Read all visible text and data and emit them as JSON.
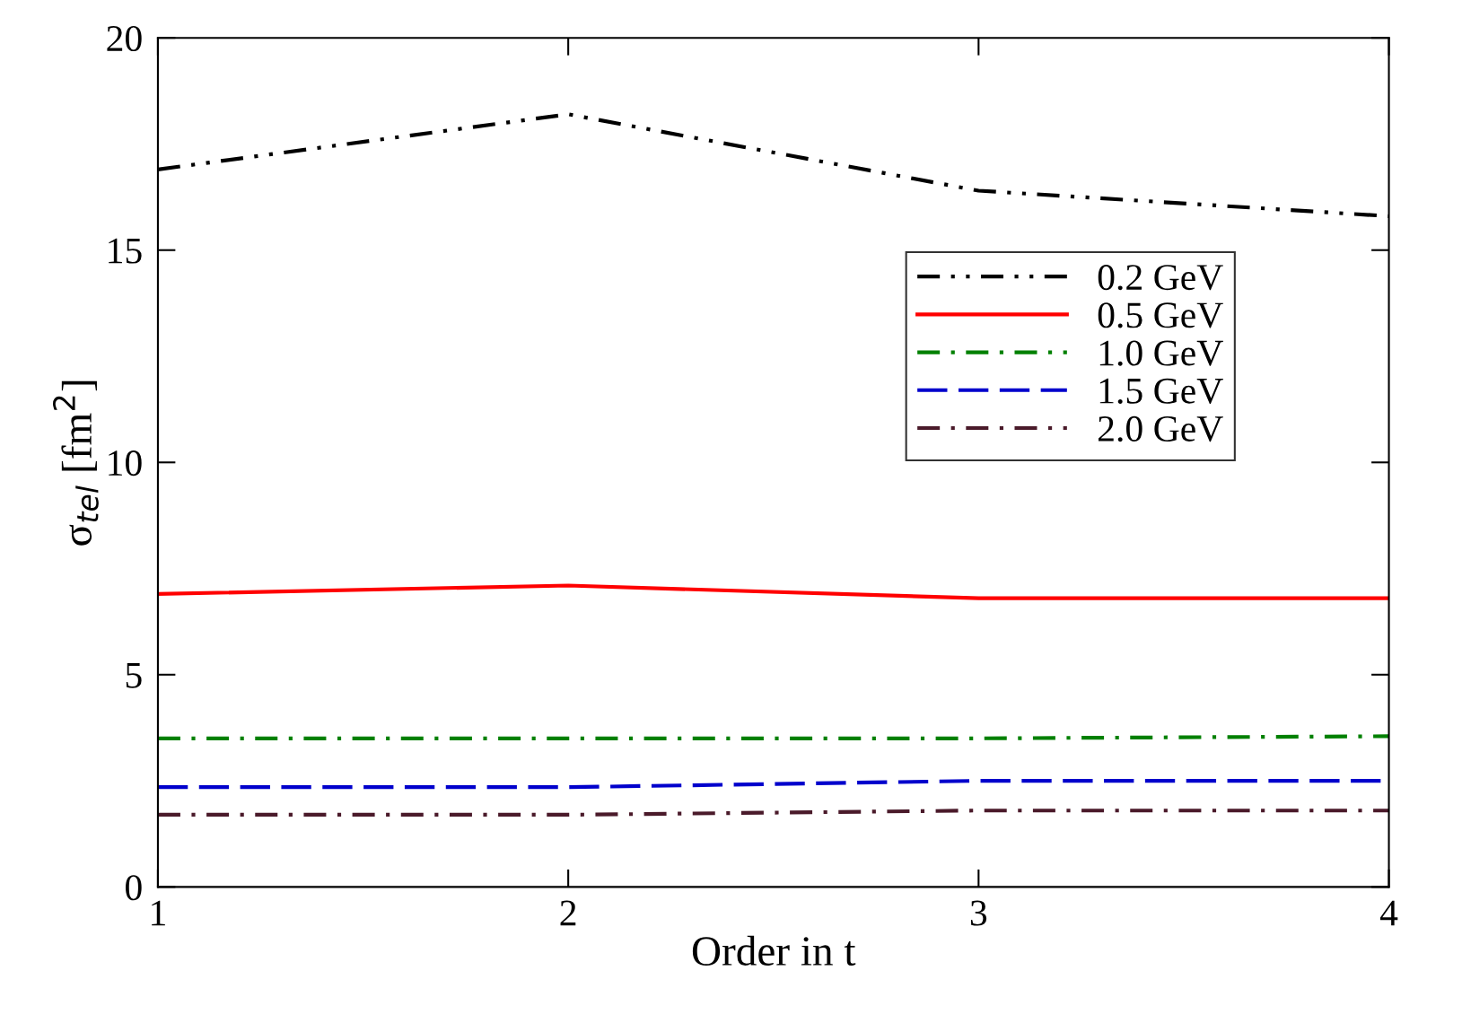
{
  "chart_data": {
    "type": "line",
    "xlabel": "Order in t",
    "ylabel": "σ$_{tel}$ [fm$^{2}$]",
    "x": [
      1,
      2,
      3,
      4
    ],
    "xlim": [
      1,
      4
    ],
    "xticks": [
      1,
      2,
      3,
      4
    ],
    "ylim": [
      0,
      20
    ],
    "yticks": [
      0,
      5,
      10,
      15,
      20
    ],
    "legend": "right",
    "grid": false,
    "series": [
      {
        "name": "0.2 GeV",
        "color": "#000000",
        "line_style": "dashdotdot",
        "values": [
          16.9,
          18.2,
          16.4,
          15.8
        ]
      },
      {
        "name": "0.5 GeV",
        "color": "#ff0000",
        "line_style": "solid",
        "values": [
          6.9,
          7.1,
          6.8,
          6.8
        ]
      },
      {
        "name": "1.0 GeV",
        "color": "#008000",
        "line_style": "dashdot",
        "values": [
          3.5,
          3.5,
          3.5,
          3.55
        ]
      },
      {
        "name": "1.5 GeV",
        "color": "#0000cc",
        "line_style": "dashed",
        "values": [
          2.35,
          2.35,
          2.5,
          2.5
        ]
      },
      {
        "name": "2.0 GeV",
        "color": "#4a1a2a",
        "line_style": "dashdot",
        "values": [
          1.7,
          1.7,
          1.8,
          1.8
        ]
      }
    ]
  }
}
